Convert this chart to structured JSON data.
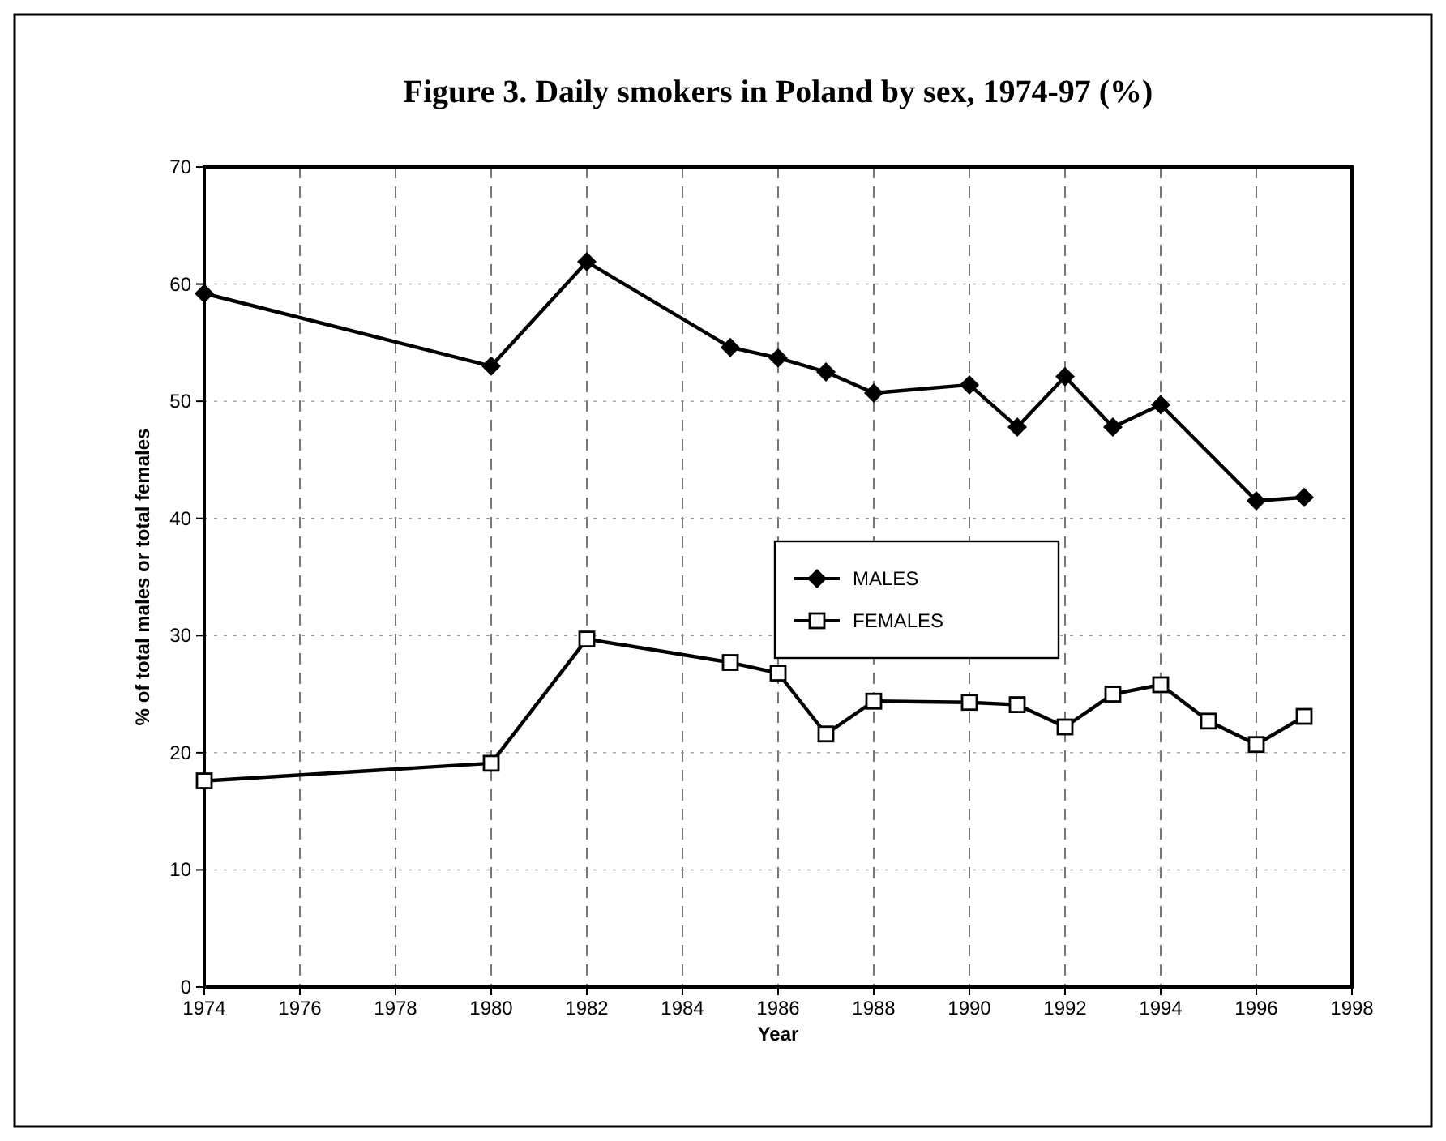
{
  "chart_data": {
    "type": "line",
    "title": "Figure 3. Daily smokers in Poland by sex, 1974-97 (%)",
    "xlabel": "Year",
    "ylabel": "% of total males or total females",
    "xlim": [
      1974,
      1998
    ],
    "xticks": [
      1974,
      1976,
      1978,
      1980,
      1982,
      1984,
      1986,
      1988,
      1990,
      1992,
      1994,
      1996,
      1998
    ],
    "ylim": [
      0,
      70
    ],
    "yticks": [
      0,
      10,
      20,
      30,
      40,
      50,
      60,
      70
    ],
    "grid": true,
    "legend": "right",
    "series": [
      {
        "name": "MALES",
        "color": "#000000",
        "marker": "diamond",
        "x": [
          1974,
          1980,
          1982,
          1985,
          1986,
          1987,
          1988,
          1990,
          1991,
          1992,
          1993,
          1994,
          1996,
          1997
        ],
        "values": [
          59.2,
          53,
          61.9,
          54.6,
          53.7,
          52.5,
          50.7,
          51.4,
          47.8,
          52.1,
          47.8,
          49.7,
          41.5,
          41.8
        ]
      },
      {
        "name": "FEMALES",
        "color": "#000000",
        "marker": "square",
        "x": [
          1974,
          1980,
          1982,
          1985,
          1986,
          1987,
          1988,
          1990,
          1991,
          1992,
          1993,
          1994,
          1995,
          1996,
          1997
        ],
        "values": [
          17.6,
          19.1,
          29.7,
          27.7,
          26.8,
          21.6,
          24.4,
          24.3,
          24.1,
          22.2,
          25,
          25.8,
          22.7,
          20.7,
          23.1
        ]
      }
    ]
  }
}
